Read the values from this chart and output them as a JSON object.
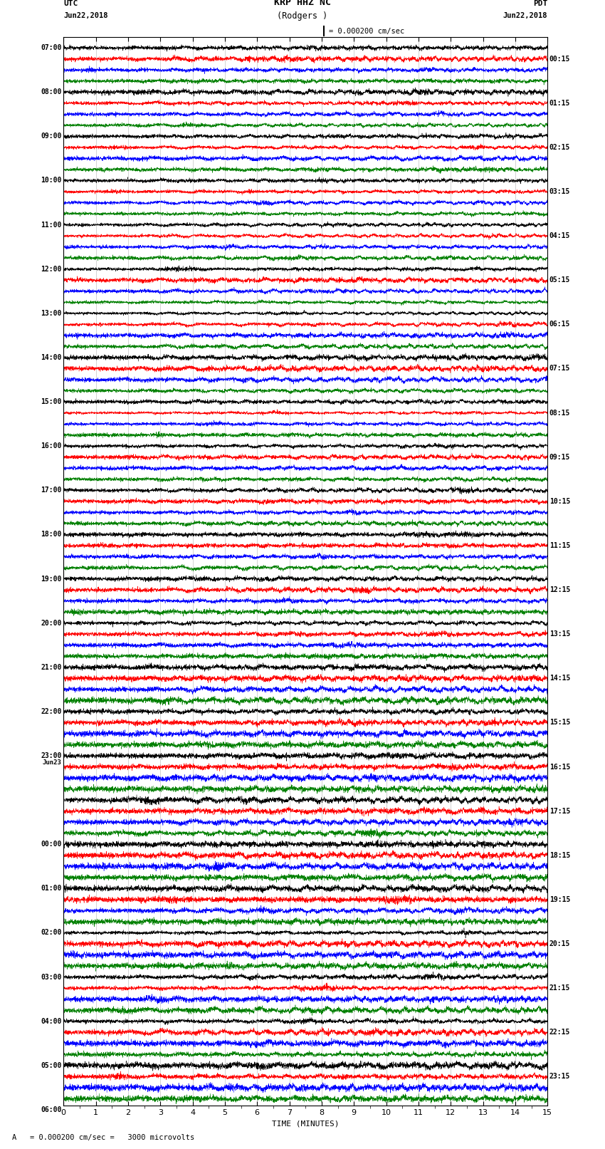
{
  "title_line1": "KRP HHZ NC",
  "title_line2": "(Rodgers )",
  "scale_label": "= 0.000200 cm/sec",
  "scale_label2": "A   = 0.000200 cm/sec =   3000 microvolts",
  "xlabel": "TIME (MINUTES)",
  "left_label_header": "UTC",
  "left_label_date": "Jun22,2018",
  "right_label_header": "PDT",
  "right_label_date": "Jun22,2018",
  "left_times": [
    "07:00",
    "08:00",
    "09:00",
    "10:00",
    "11:00",
    "12:00",
    "13:00",
    "14:00",
    "15:00",
    "16:00",
    "17:00",
    "18:00",
    "19:00",
    "20:00",
    "21:00",
    "22:00",
    "23:00",
    "Jun23",
    "00:00",
    "01:00",
    "02:00",
    "03:00",
    "04:00",
    "05:00",
    "06:00"
  ],
  "right_times": [
    "00:15",
    "01:15",
    "02:15",
    "03:15",
    "04:15",
    "05:15",
    "06:15",
    "07:15",
    "08:15",
    "09:15",
    "10:15",
    "11:15",
    "12:15",
    "13:15",
    "14:15",
    "15:15",
    "16:15",
    "17:15",
    "18:15",
    "19:15",
    "20:15",
    "21:15",
    "22:15",
    "23:15"
  ],
  "colors": [
    "black",
    "red",
    "blue",
    "green"
  ],
  "bg_color": "white",
  "num_hours": 24,
  "traces_per_hour": 4,
  "seed": 42,
  "fig_width": 8.5,
  "fig_height": 16.13
}
